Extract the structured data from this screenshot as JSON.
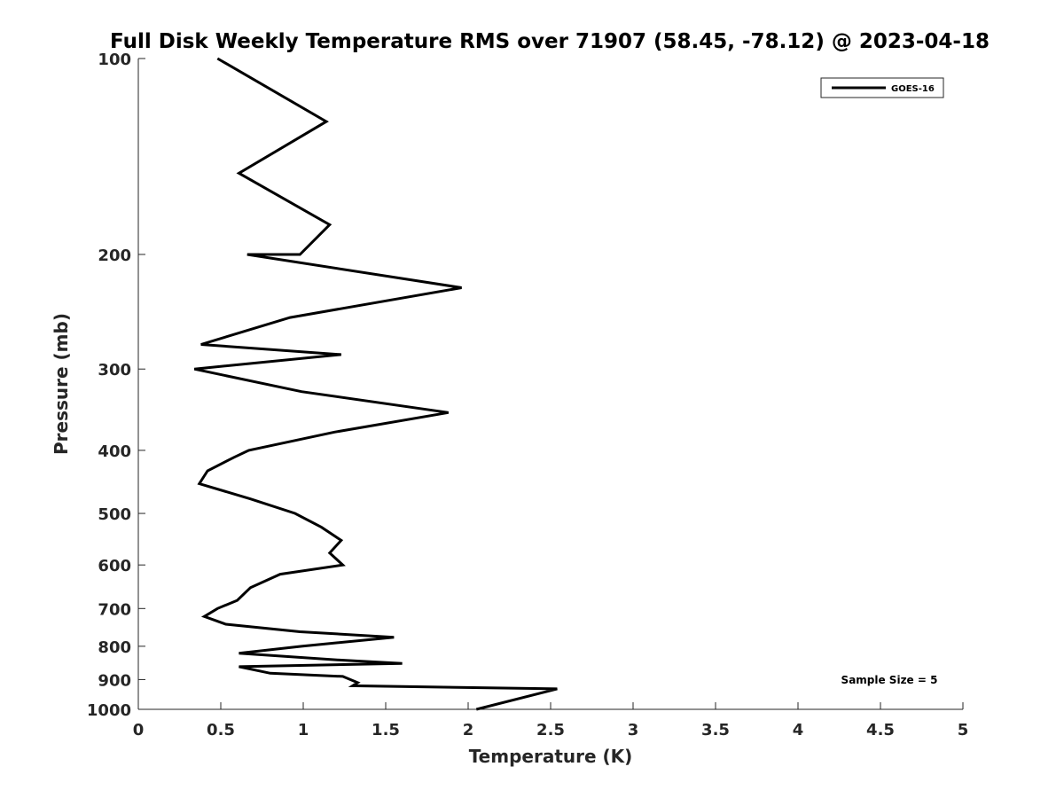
{
  "chart_data": {
    "type": "line",
    "title": "Full Disk Weekly Temperature RMS over 71907 (58.45, -78.12) @ 2023-04-18",
    "xlabel": "Temperature (K)",
    "ylabel": "Pressure (mb)",
    "xlim": [
      0,
      5
    ],
    "ylim": [
      100,
      1000
    ],
    "y_scale": "log",
    "y_reversed": true,
    "x_ticks": [
      "0",
      "0.5",
      "1",
      "1.5",
      "2",
      "2.5",
      "3",
      "3.5",
      "4",
      "4.5",
      "5"
    ],
    "x_tick_values": [
      0,
      0.5,
      1,
      1.5,
      2,
      2.5,
      3,
      3.5,
      4,
      4.5,
      5
    ],
    "y_ticks": [
      "100",
      "200",
      "300",
      "400",
      "500",
      "600",
      "700",
      "800",
      "900",
      "1000"
    ],
    "y_tick_values": [
      100,
      200,
      300,
      400,
      500,
      600,
      700,
      800,
      900,
      1000
    ],
    "grid": false,
    "legend_position": "top-right",
    "series": [
      {
        "name": "GOES-16",
        "color": "#000000",
        "points": [
          [
            0.48,
            100
          ],
          [
            1.14,
            125
          ],
          [
            0.61,
            150
          ],
          [
            1.16,
            180
          ],
          [
            0.98,
            200
          ],
          [
            0.66,
            200
          ],
          [
            1.96,
            225
          ],
          [
            0.92,
            250
          ],
          [
            0.38,
            275
          ],
          [
            1.23,
            285
          ],
          [
            0.34,
            300
          ],
          [
            0.99,
            325
          ],
          [
            1.88,
            350
          ],
          [
            1.19,
            375
          ],
          [
            0.67,
            400
          ],
          [
            0.58,
            410
          ],
          [
            0.42,
            430
          ],
          [
            0.37,
            450
          ],
          [
            0.68,
            475
          ],
          [
            0.95,
            500
          ],
          [
            1.11,
            525
          ],
          [
            1.23,
            550
          ],
          [
            1.16,
            575
          ],
          [
            1.24,
            600
          ],
          [
            0.86,
            620
          ],
          [
            0.68,
            650
          ],
          [
            0.6,
            680
          ],
          [
            0.48,
            700
          ],
          [
            0.4,
            720
          ],
          [
            0.53,
            740
          ],
          [
            0.98,
            760
          ],
          [
            1.55,
            775
          ],
          [
            0.99,
            800
          ],
          [
            0.61,
            820
          ],
          [
            1.22,
            840
          ],
          [
            1.6,
            850
          ],
          [
            0.61,
            860
          ],
          [
            0.8,
            880
          ],
          [
            1.24,
            890
          ],
          [
            1.33,
            910
          ],
          [
            1.3,
            920
          ],
          [
            2.54,
            930
          ],
          [
            2.05,
            1000
          ]
        ]
      }
    ],
    "annotation": "Sample Size = 5"
  }
}
